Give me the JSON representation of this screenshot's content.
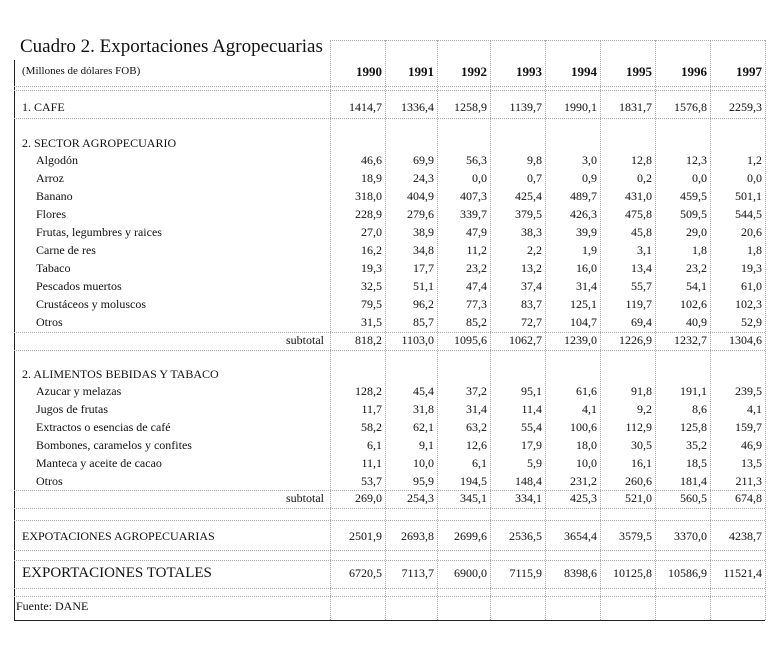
{
  "title": "Cuadro 2. Exportaciones Agropecuarias",
  "subtitle": "(Millones de dólares FOB)",
  "years": [
    "1990",
    "1991",
    "1992",
    "1993",
    "1994",
    "1995",
    "1996",
    "1997"
  ],
  "cafe": {
    "label": "1. CAFE",
    "values": [
      "1414,7",
      "1336,4",
      "1258,9",
      "1139,7",
      "1990,1",
      "1831,7",
      "1576,8",
      "2259,3"
    ]
  },
  "sector_agropecuario": {
    "label": "2. SECTOR AGROPECUARIO",
    "items": [
      {
        "label": "Algodón",
        "values": [
          "46,6",
          "69,9",
          "56,3",
          "9,8",
          "3,0",
          "12,8",
          "12,3",
          "1,2"
        ]
      },
      {
        "label": "Arroz",
        "values": [
          "18,9",
          "24,3",
          "0,0",
          "0,7",
          "0,9",
          "0,2",
          "0,0",
          "0,0"
        ]
      },
      {
        "label": "Banano",
        "values": [
          "318,0",
          "404,9",
          "407,3",
          "425,4",
          "489,7",
          "431,0",
          "459,5",
          "501,1"
        ]
      },
      {
        "label": "Flores",
        "values": [
          "228,9",
          "279,6",
          "339,7",
          "379,5",
          "426,3",
          "475,8",
          "509,5",
          "544,5"
        ]
      },
      {
        "label": "Frutas, legumbres y raices",
        "values": [
          "27,0",
          "38,9",
          "47,9",
          "38,3",
          "39,9",
          "45,8",
          "29,0",
          "20,6"
        ]
      },
      {
        "label": "Carne de res",
        "values": [
          "16,2",
          "34,8",
          "11,2",
          "2,2",
          "1,9",
          "3,1",
          "1,8",
          "1,8"
        ]
      },
      {
        "label": "Tabaco",
        "values": [
          "19,3",
          "17,7",
          "23,2",
          "13,2",
          "16,0",
          "13,4",
          "23,2",
          "19,3"
        ]
      },
      {
        "label": "Pescados muertos",
        "values": [
          "32,5",
          "51,1",
          "47,4",
          "37,4",
          "31,4",
          "55,7",
          "54,1",
          "61,0"
        ]
      },
      {
        "label": "Crustáceos y moluscos",
        "values": [
          "79,5",
          "96,2",
          "77,3",
          "83,7",
          "125,1",
          "119,7",
          "102,6",
          "102,3"
        ]
      },
      {
        "label": "Otros",
        "values": [
          "31,5",
          "85,7",
          "85,2",
          "72,7",
          "104,7",
          "69,4",
          "40,9",
          "52,9"
        ]
      }
    ],
    "subtotal": {
      "label": "subtotal",
      "values": [
        "818,2",
        "1103,0",
        "1095,6",
        "1062,7",
        "1239,0",
        "1226,9",
        "1232,7",
        "1304,6"
      ]
    }
  },
  "alimentos": {
    "label": "2. ALIMENTOS BEBIDAS Y TABACO",
    "items": [
      {
        "label": "Azucar y melazas",
        "values": [
          "128,2",
          "45,4",
          "37,2",
          "95,1",
          "61,6",
          "91,8",
          "191,1",
          "239,5"
        ]
      },
      {
        "label": "Jugos de frutas",
        "values": [
          "11,7",
          "31,8",
          "31,4",
          "11,4",
          "4,1",
          "9,2",
          "8,6",
          "4,1"
        ]
      },
      {
        "label": "Extractos o esencias de café",
        "values": [
          "58,2",
          "62,1",
          "63,2",
          "55,4",
          "100,6",
          "112,9",
          "125,8",
          "159,7"
        ]
      },
      {
        "label": "Bombones, caramelos y confites",
        "values": [
          "6,1",
          "9,1",
          "12,6",
          "17,9",
          "18,0",
          "30,5",
          "35,2",
          "46,9"
        ]
      },
      {
        "label": "Manteca y aceite de cacao",
        "values": [
          "11,1",
          "10,0",
          "6,1",
          "5,9",
          "10,0",
          "16,1",
          "18,5",
          "13,5"
        ]
      },
      {
        "label": "Otros",
        "values": [
          "53,7",
          "95,9",
          "194,5",
          "148,4",
          "231,2",
          "260,6",
          "181,4",
          "211,3"
        ]
      }
    ],
    "subtotal": {
      "label": "subtotal",
      "values": [
        "269,0",
        "254,3",
        "345,1",
        "334,1",
        "425,3",
        "521,0",
        "560,5",
        "674,8"
      ]
    }
  },
  "expo_agropecuarias": {
    "label": "EXPOTACIONES AGROPECUARIAS",
    "values": [
      "2501,9",
      "2693,8",
      "2699,6",
      "2536,5",
      "3654,4",
      "3579,5",
      "3370,0",
      "4238,7"
    ]
  },
  "expo_totales": {
    "label": "EXPORTACIONES TOTALES",
    "values": [
      "6720,5",
      "7113,7",
      "6900,0",
      "7115,9",
      "8398,6",
      "10125,8",
      "10586,9",
      "11521,4"
    ]
  },
  "source": "Fuente: DANE"
}
